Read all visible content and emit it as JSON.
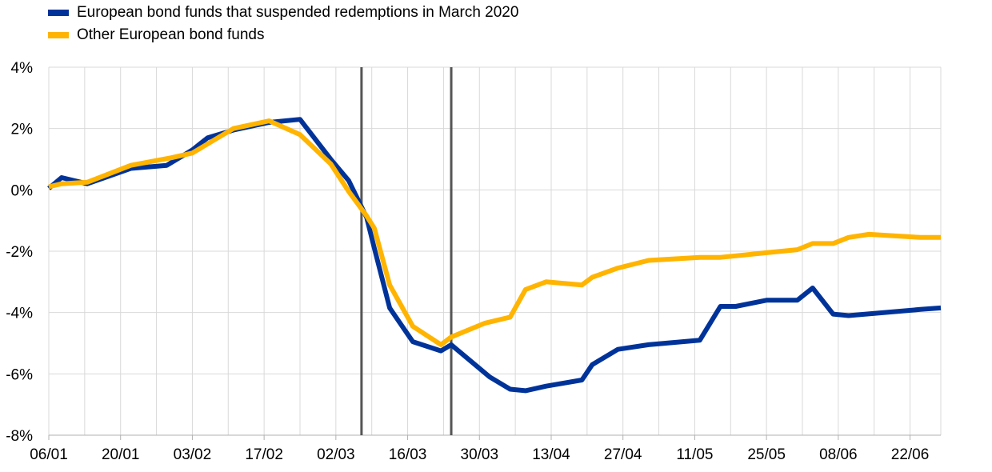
{
  "chart_data": {
    "type": "line",
    "title": "",
    "xlabel": "",
    "ylabel": "",
    "x_tick_labels": [
      "06/01",
      "20/01",
      "03/02",
      "17/02",
      "02/03",
      "16/03",
      "30/03",
      "13/04",
      "27/04",
      "11/05",
      "25/05",
      "08/06",
      "22/06"
    ],
    "y_tick_labels": [
      "4%",
      "2%",
      "0%",
      "-2%",
      "-4%",
      "-6%",
      "-8%"
    ],
    "ylim": [
      -8,
      4
    ],
    "x_range_days": [
      0,
      174
    ],
    "x_unit_note": "x = days since 06/01",
    "grid": true,
    "legend_position": "top-left",
    "vertical_markers_x": [
      61,
      78.5
    ],
    "marker_color": "#555555",
    "series": [
      {
        "name": "European bond funds that suspended redemptions in March 2020",
        "color": "#003399",
        "points": [
          [
            0,
            0.05
          ],
          [
            2.5,
            0.4
          ],
          [
            7.5,
            0.2
          ],
          [
            16,
            0.7
          ],
          [
            23,
            0.8
          ],
          [
            28,
            1.3
          ],
          [
            31,
            1.7
          ],
          [
            36,
            1.95
          ],
          [
            43,
            2.2
          ],
          [
            49,
            2.3
          ],
          [
            55,
            1.0
          ],
          [
            58.5,
            0.3
          ],
          [
            62,
            -0.9
          ],
          [
            63.5,
            -1.9
          ],
          [
            66.5,
            -3.85
          ],
          [
            71,
            -4.95
          ],
          [
            76.5,
            -5.25
          ],
          [
            78.5,
            -5.05
          ],
          [
            86,
            -6.1
          ],
          [
            90,
            -6.5
          ],
          [
            93,
            -6.55
          ],
          [
            97,
            -6.4
          ],
          [
            104,
            -6.2
          ],
          [
            106,
            -5.7
          ],
          [
            111,
            -5.2
          ],
          [
            117,
            -5.05
          ],
          [
            127,
            -4.9
          ],
          [
            131,
            -3.8
          ],
          [
            134,
            -3.8
          ],
          [
            140,
            -3.6
          ],
          [
            146,
            -3.6
          ],
          [
            149,
            -3.2
          ],
          [
            153,
            -4.05
          ],
          [
            156,
            -4.1
          ],
          [
            170,
            -3.9
          ],
          [
            174,
            -3.85
          ]
        ]
      },
      {
        "name": "Other European bond funds",
        "color": "#FFB400",
        "points": [
          [
            0,
            0.1
          ],
          [
            2.5,
            0.2
          ],
          [
            7.5,
            0.25
          ],
          [
            16,
            0.8
          ],
          [
            24,
            1.05
          ],
          [
            28,
            1.2
          ],
          [
            36,
            2.0
          ],
          [
            43,
            2.25
          ],
          [
            49,
            1.8
          ],
          [
            55,
            0.85
          ],
          [
            58.5,
            -0.05
          ],
          [
            62,
            -0.85
          ],
          [
            63.5,
            -1.25
          ],
          [
            66.5,
            -3.1
          ],
          [
            71,
            -4.45
          ],
          [
            76.5,
            -5.05
          ],
          [
            78.5,
            -4.8
          ],
          [
            85,
            -4.35
          ],
          [
            90,
            -4.15
          ],
          [
            93,
            -3.25
          ],
          [
            97,
            -3.0
          ],
          [
            104,
            -3.1
          ],
          [
            106,
            -2.85
          ],
          [
            111,
            -2.55
          ],
          [
            117,
            -2.3
          ],
          [
            127,
            -2.2
          ],
          [
            131,
            -2.2
          ],
          [
            134,
            -2.15
          ],
          [
            140,
            -2.05
          ],
          [
            146,
            -1.95
          ],
          [
            149,
            -1.75
          ],
          [
            153,
            -1.75
          ],
          [
            156,
            -1.55
          ],
          [
            160,
            -1.45
          ],
          [
            170,
            -1.55
          ],
          [
            174,
            -1.55
          ]
        ]
      }
    ]
  }
}
